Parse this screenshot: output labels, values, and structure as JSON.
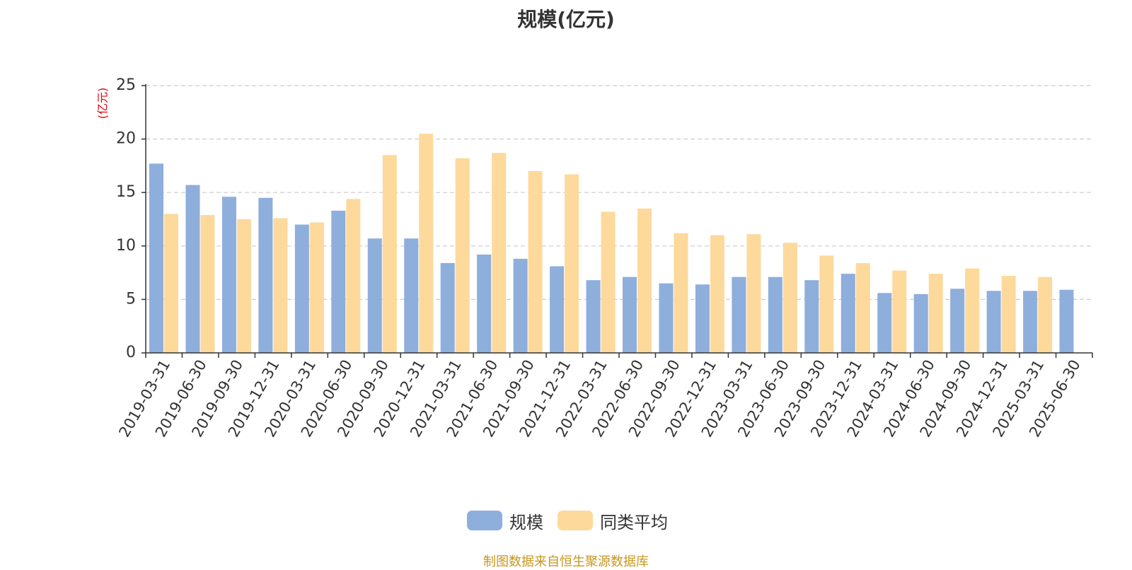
{
  "chart_data": {
    "type": "bar",
    "title": "规模(亿元)",
    "ylabel": "(亿元)",
    "ylim": [
      0,
      25
    ],
    "yticks": [
      "0",
      "5",
      "10",
      "15",
      "20",
      "25"
    ],
    "grid": true,
    "legend_position": "bottom-center",
    "categories": [
      "2019-03-31",
      "2019-06-30",
      "2019-09-30",
      "2019-12-31",
      "2020-03-31",
      "2020-06-30",
      "2020-09-30",
      "2020-12-31",
      "2021-03-31",
      "2021-06-30",
      "2021-09-30",
      "2021-12-31",
      "2022-03-31",
      "2022-06-30",
      "2022-09-30",
      "2022-12-31",
      "2023-03-31",
      "2023-06-30",
      "2023-09-30",
      "2023-12-31",
      "2024-03-31",
      "2024-06-30",
      "2024-09-30",
      "2024-12-31",
      "2025-03-31",
      "2025-06-30"
    ],
    "series": [
      {
        "name": "规模",
        "color": "#8eaedc",
        "values": [
          17.7,
          15.7,
          14.6,
          14.5,
          12.0,
          13.3,
          10.7,
          10.7,
          8.4,
          9.2,
          8.8,
          8.1,
          6.8,
          7.1,
          6.5,
          6.4,
          7.1,
          7.1,
          6.8,
          7.4,
          5.6,
          5.5,
          6.0,
          5.8,
          5.8,
          5.9
        ]
      },
      {
        "name": "同类平均",
        "color": "#fdd99b",
        "values": [
          13.0,
          12.9,
          12.5,
          12.6,
          12.2,
          14.4,
          18.5,
          20.5,
          18.2,
          18.7,
          17.0,
          16.7,
          13.2,
          13.5,
          11.2,
          11.0,
          11.1,
          10.3,
          9.1,
          8.4,
          7.7,
          7.4,
          7.9,
          7.2,
          7.1,
          null
        ]
      }
    ]
  },
  "source_note": "制图数据来自恒生聚源数据库"
}
